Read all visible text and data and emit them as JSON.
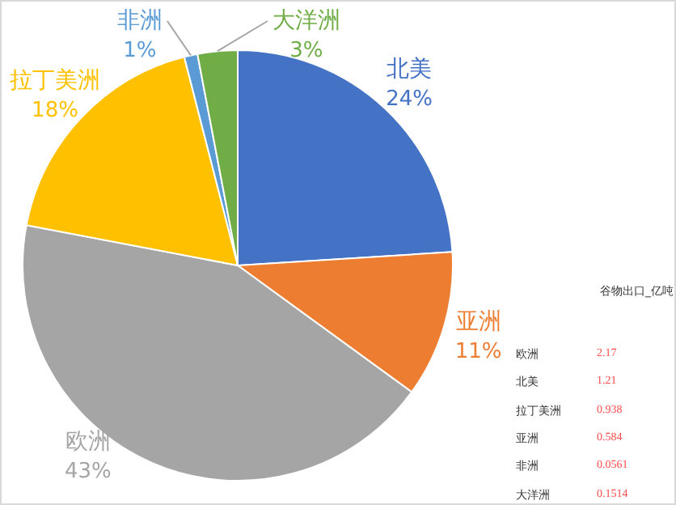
{
  "chart_data": {
    "type": "pie",
    "categories": [
      "北美",
      "亚洲",
      "欧洲",
      "拉丁美洲",
      "非洲",
      "大洋洲"
    ],
    "values": [
      24,
      11,
      43,
      18,
      1,
      3
    ],
    "colors": [
      "#4472c4",
      "#ed7d31",
      "#a5a5a5",
      "#ffc000",
      "#5b9bd5",
      "#70ad47"
    ],
    "value_labels": [
      "24%",
      "11%",
      "43%",
      "18%",
      "1%",
      "3%"
    ],
    "annotations": [
      "谷物出口_亿吨",
      "欧洲",
      "2.17",
      "北美",
      "1.21",
      "拉丁美洲",
      "0.938",
      "亚洲",
      "0.584",
      "非洲",
      "0.0561",
      "大洋洲",
      "0.1514"
    ]
  }
}
